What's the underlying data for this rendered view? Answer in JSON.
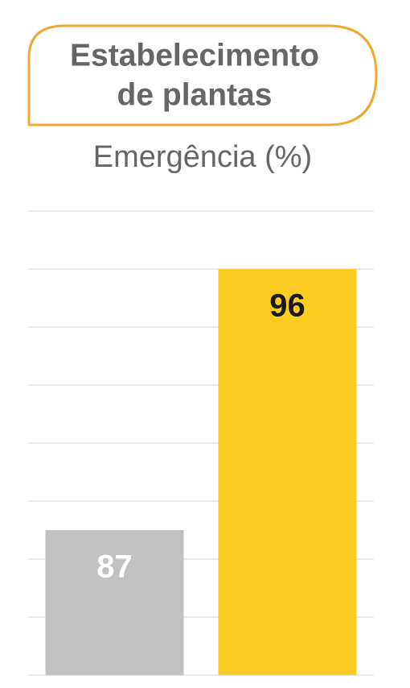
{
  "chart_data": {
    "type": "bar",
    "title": [
      "Estabelecimento",
      "de plantas"
    ],
    "subtitle": "Emergência (%)",
    "categories": [
      null,
      null
    ],
    "values": [
      87,
      96
    ],
    "colors": [
      "#c0c1c3",
      "#fdcb22"
    ],
    "label_colors": [
      "#ffffff",
      "#1a1a1a"
    ],
    "ylim": [
      82,
      98
    ],
    "yticks": [
      82,
      84,
      86,
      88,
      90,
      92,
      94,
      96,
      98
    ],
    "grid": true
  }
}
